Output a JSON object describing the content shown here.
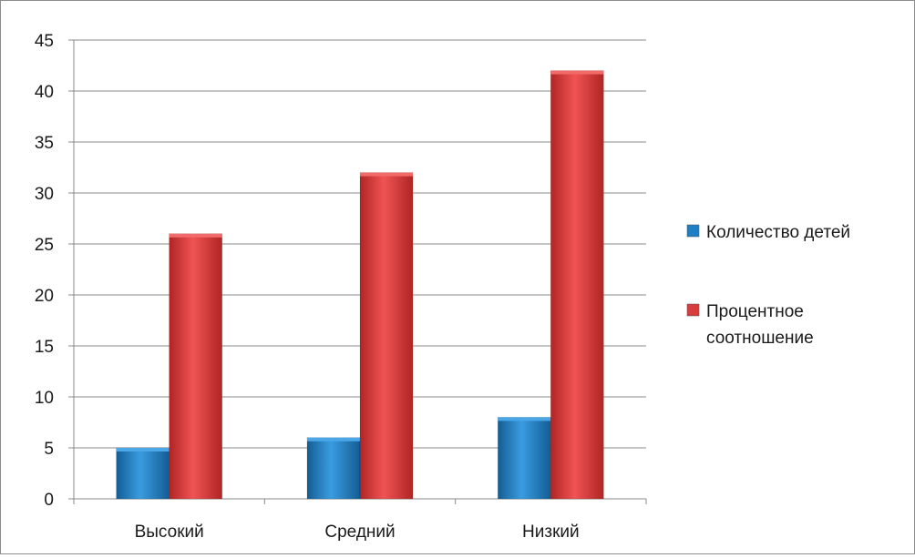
{
  "chart_data": {
    "type": "bar",
    "title": "",
    "xlabel": "",
    "ylabel": "",
    "categories": [
      "Высокий",
      "Средний",
      "Низкий"
    ],
    "series": [
      {
        "name": "Количество детей",
        "values": [
          5,
          6,
          8
        ],
        "color": "#1f7fc4"
      },
      {
        "name": "Процентное соотношение",
        "values": [
          26,
          32,
          42
        ],
        "color": "#d83c3c"
      }
    ],
    "ylim": [
      0,
      45
    ],
    "yticks": [
      0,
      5,
      10,
      15,
      20,
      25,
      30,
      35,
      40,
      45
    ],
    "grid": true,
    "legend_position": "right",
    "legend_lines": [
      [
        "Количество детей"
      ],
      [
        "Процентное",
        "соотношение"
      ]
    ]
  }
}
